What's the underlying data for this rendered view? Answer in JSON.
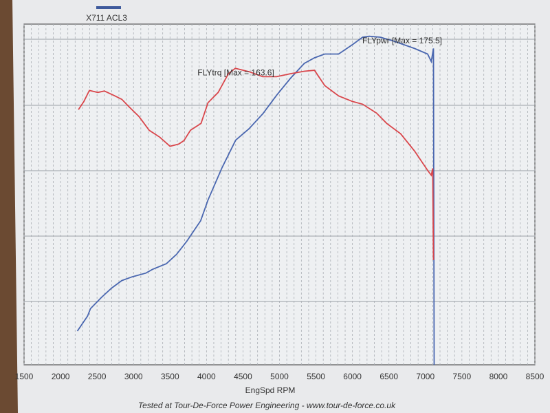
{
  "chart_data": {
    "type": "line",
    "title": "X711 ACL3",
    "x_label": "EngSpd RPM",
    "footer": "Tested at Tour-De-Force Power Engineering - www.tour-de-force.co.uk",
    "xlim": [
      1500,
      8500
    ],
    "xticks": [
      1500,
      2000,
      2500,
      3000,
      3500,
      4000,
      4500,
      5000,
      5500,
      6000,
      6500,
      7000,
      7500,
      8000,
      8500
    ],
    "ylim": [
      0,
      182
    ],
    "y2lim": [
      0,
      188
    ],
    "grid": true,
    "series": [
      {
        "name": "FLYpwr [Max = 175.5]",
        "color": "#4a67b0",
        "x": [
          2230,
          2370,
          2410,
          2560,
          2700,
          2840,
          2980,
          3170,
          3260,
          3450,
          3590,
          3730,
          3920,
          4020,
          4210,
          4400,
          4580,
          4770,
          4960,
          5150,
          5340,
          5480,
          5620,
          5810,
          6000,
          6140,
          6230,
          6380,
          6560,
          6850,
          7030,
          7080,
          7110,
          7120
        ],
        "values": [
          18,
          26,
          30,
          36,
          41,
          45,
          47,
          49,
          51,
          54,
          59,
          66,
          77,
          88,
          105,
          120,
          126,
          134,
          144,
          153,
          161,
          164,
          166,
          166,
          171,
          175,
          175.5,
          175,
          173,
          169,
          166,
          162,
          169,
          0
        ]
      },
      {
        "name": "FLYtrq [Max = 163.6]",
        "color": "#d9464b",
        "axis": "y2",
        "x": [
          2245,
          2320,
          2395,
          2510,
          2600,
          2745,
          2840,
          2930,
          3075,
          3215,
          3360,
          3500,
          3620,
          3690,
          3780,
          3925,
          4020,
          4160,
          4300,
          4395,
          4585,
          4770,
          4960,
          5150,
          5340,
          5480,
          5620,
          5810,
          6000,
          6140,
          6330,
          6470,
          6660,
          6850,
          7030,
          7080,
          7100,
          7110
        ],
        "values": [
          140.8,
          145.3,
          151.4,
          150.3,
          151.1,
          148.4,
          146.5,
          142.7,
          137,
          129.4,
          125.6,
          120.6,
          121.8,
          123.7,
          129.4,
          133.2,
          144.6,
          150.3,
          160.6,
          163.6,
          161.7,
          159,
          159,
          160.6,
          162,
          162.5,
          154.1,
          148.4,
          145.3,
          143.8,
          138.9,
          133.2,
          127.5,
          118,
          107.3,
          104.6,
          108.4,
          57.8
        ]
      }
    ]
  }
}
